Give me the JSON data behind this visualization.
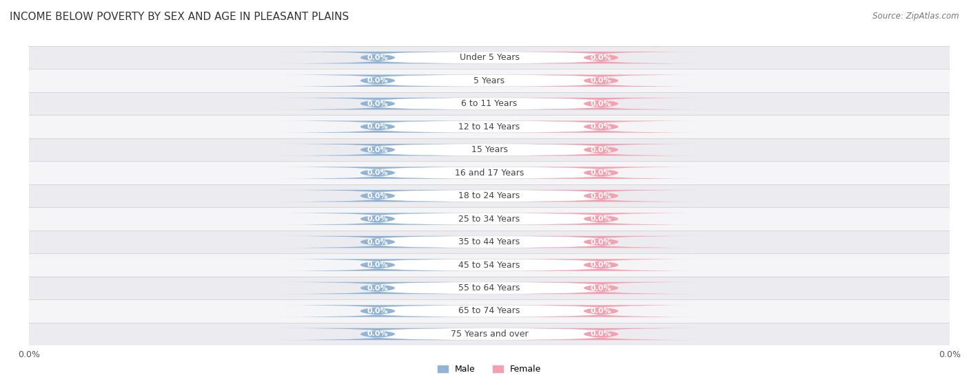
{
  "title": "INCOME BELOW POVERTY BY SEX AND AGE IN PLEASANT PLAINS",
  "source": "Source: ZipAtlas.com",
  "categories": [
    "Under 5 Years",
    "5 Years",
    "6 to 11 Years",
    "12 to 14 Years",
    "15 Years",
    "16 and 17 Years",
    "18 to 24 Years",
    "25 to 34 Years",
    "35 to 44 Years",
    "45 to 54 Years",
    "55 to 64 Years",
    "65 to 74 Years",
    "75 Years and over"
  ],
  "male_values": [
    0.0,
    0.0,
    0.0,
    0.0,
    0.0,
    0.0,
    0.0,
    0.0,
    0.0,
    0.0,
    0.0,
    0.0,
    0.0
  ],
  "female_values": [
    0.0,
    0.0,
    0.0,
    0.0,
    0.0,
    0.0,
    0.0,
    0.0,
    0.0,
    0.0,
    0.0,
    0.0,
    0.0
  ],
  "male_color": "#92b4d4",
  "female_color": "#f4a0b0",
  "male_label": "Male",
  "female_label": "Female",
  "bg_row_color_even": "#ebebf0",
  "bg_row_color_odd": "#f5f5f8",
  "text_color": "#444444",
  "bar_bg_color": "#ffffff",
  "title_fontsize": 11,
  "source_fontsize": 8.5,
  "value_fontsize": 8,
  "category_fontsize": 9,
  "legend_fontsize": 9,
  "xtick_fontsize": 9
}
